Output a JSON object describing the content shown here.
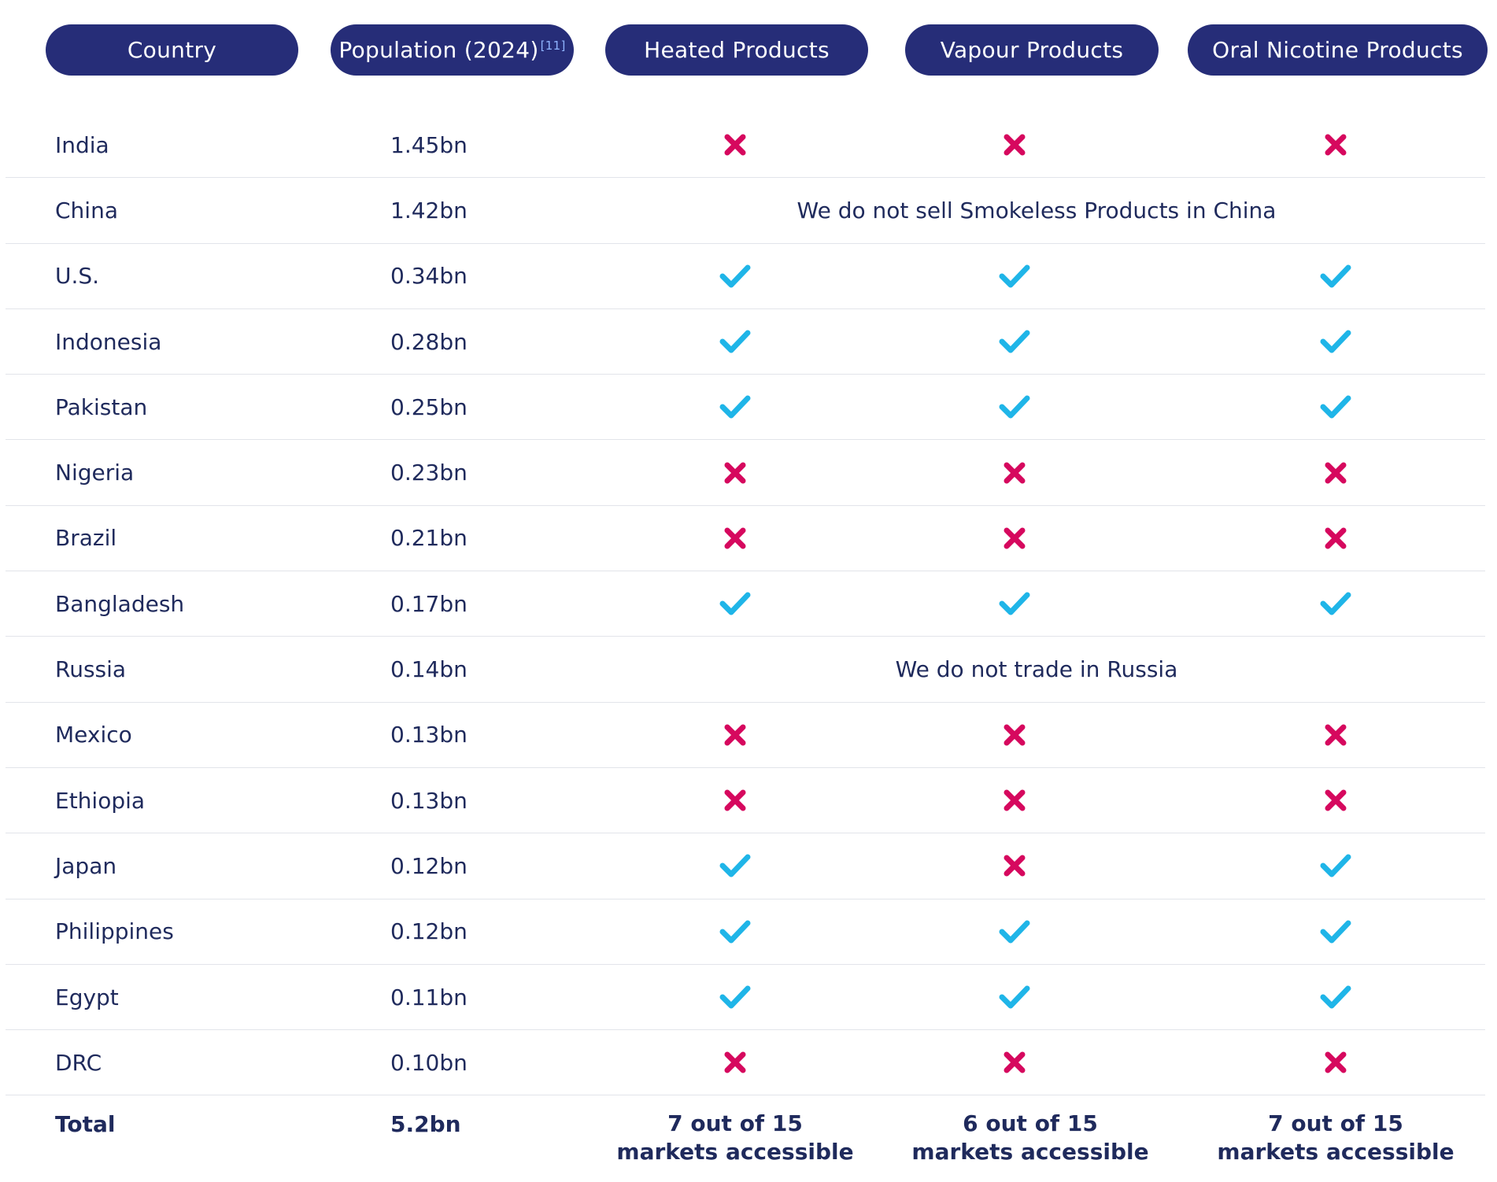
{
  "colors": {
    "header_bg": "#262d78",
    "header_text": "#ffffff",
    "body_text": "#1f2a5c",
    "check": "#1fb5e8",
    "cross": "#d6085e",
    "row_divider": "#e2e4ea"
  },
  "headers": {
    "country": "Country",
    "population": "Population (2024)",
    "population_ref": "[11]",
    "heated": "Heated Products",
    "vapour": "Vapour Products",
    "oral": "Oral Nicotine Products"
  },
  "rows": [
    {
      "country": "India",
      "population": "1.45bn",
      "heated": "cross-icon",
      "vapour": "cross-icon",
      "oral": "cross-icon"
    },
    {
      "country": "China",
      "population": "1.42bn",
      "note": "We do not sell Smokeless Products in China"
    },
    {
      "country": "U.S.",
      "population": "0.34bn",
      "heated": "check-icon",
      "vapour": "check-icon",
      "oral": "check-icon"
    },
    {
      "country": "Indonesia",
      "population": "0.28bn",
      "heated": "check-icon",
      "vapour": "check-icon",
      "oral": "check-icon"
    },
    {
      "country": "Pakistan",
      "population": "0.25bn",
      "heated": "check-icon",
      "vapour": "check-icon",
      "oral": "check-icon"
    },
    {
      "country": "Nigeria",
      "population": "0.23bn",
      "heated": "cross-icon",
      "vapour": "cross-icon",
      "oral": "cross-icon"
    },
    {
      "country": "Brazil",
      "population": "0.21bn",
      "heated": "cross-icon",
      "vapour": "cross-icon",
      "oral": "cross-icon"
    },
    {
      "country": "Bangladesh",
      "population": "0.17bn",
      "heated": "check-icon",
      "vapour": "check-icon",
      "oral": "check-icon"
    },
    {
      "country": "Russia",
      "population": "0.14bn",
      "note": "We do not trade in Russia"
    },
    {
      "country": "Mexico",
      "population": "0.13bn",
      "heated": "cross-icon",
      "vapour": "cross-icon",
      "oral": "cross-icon"
    },
    {
      "country": "Ethiopia",
      "population": "0.13bn",
      "heated": "cross-icon",
      "vapour": "cross-icon",
      "oral": "cross-icon"
    },
    {
      "country": "Japan",
      "population": "0.12bn",
      "heated": "check-icon",
      "vapour": "cross-icon",
      "oral": "check-icon"
    },
    {
      "country": "Philippines",
      "population": "0.12bn",
      "heated": "check-icon",
      "vapour": "check-icon",
      "oral": "check-icon"
    },
    {
      "country": "Egypt",
      "population": "0.11bn",
      "heated": "check-icon",
      "vapour": "check-icon",
      "oral": "check-icon"
    },
    {
      "country": "DRC",
      "population": "0.10bn",
      "heated": "cross-icon",
      "vapour": "cross-icon",
      "oral": "cross-icon"
    }
  ],
  "total": {
    "label": "Total",
    "population": "5.2bn",
    "heated": {
      "line1": "7 out of 15",
      "line2": "markets accessible"
    },
    "vapour": {
      "line1": "6 out of 15",
      "line2": "markets accessible"
    },
    "oral": {
      "line1": "7 out of 15",
      "line2": "markets accessible"
    }
  }
}
